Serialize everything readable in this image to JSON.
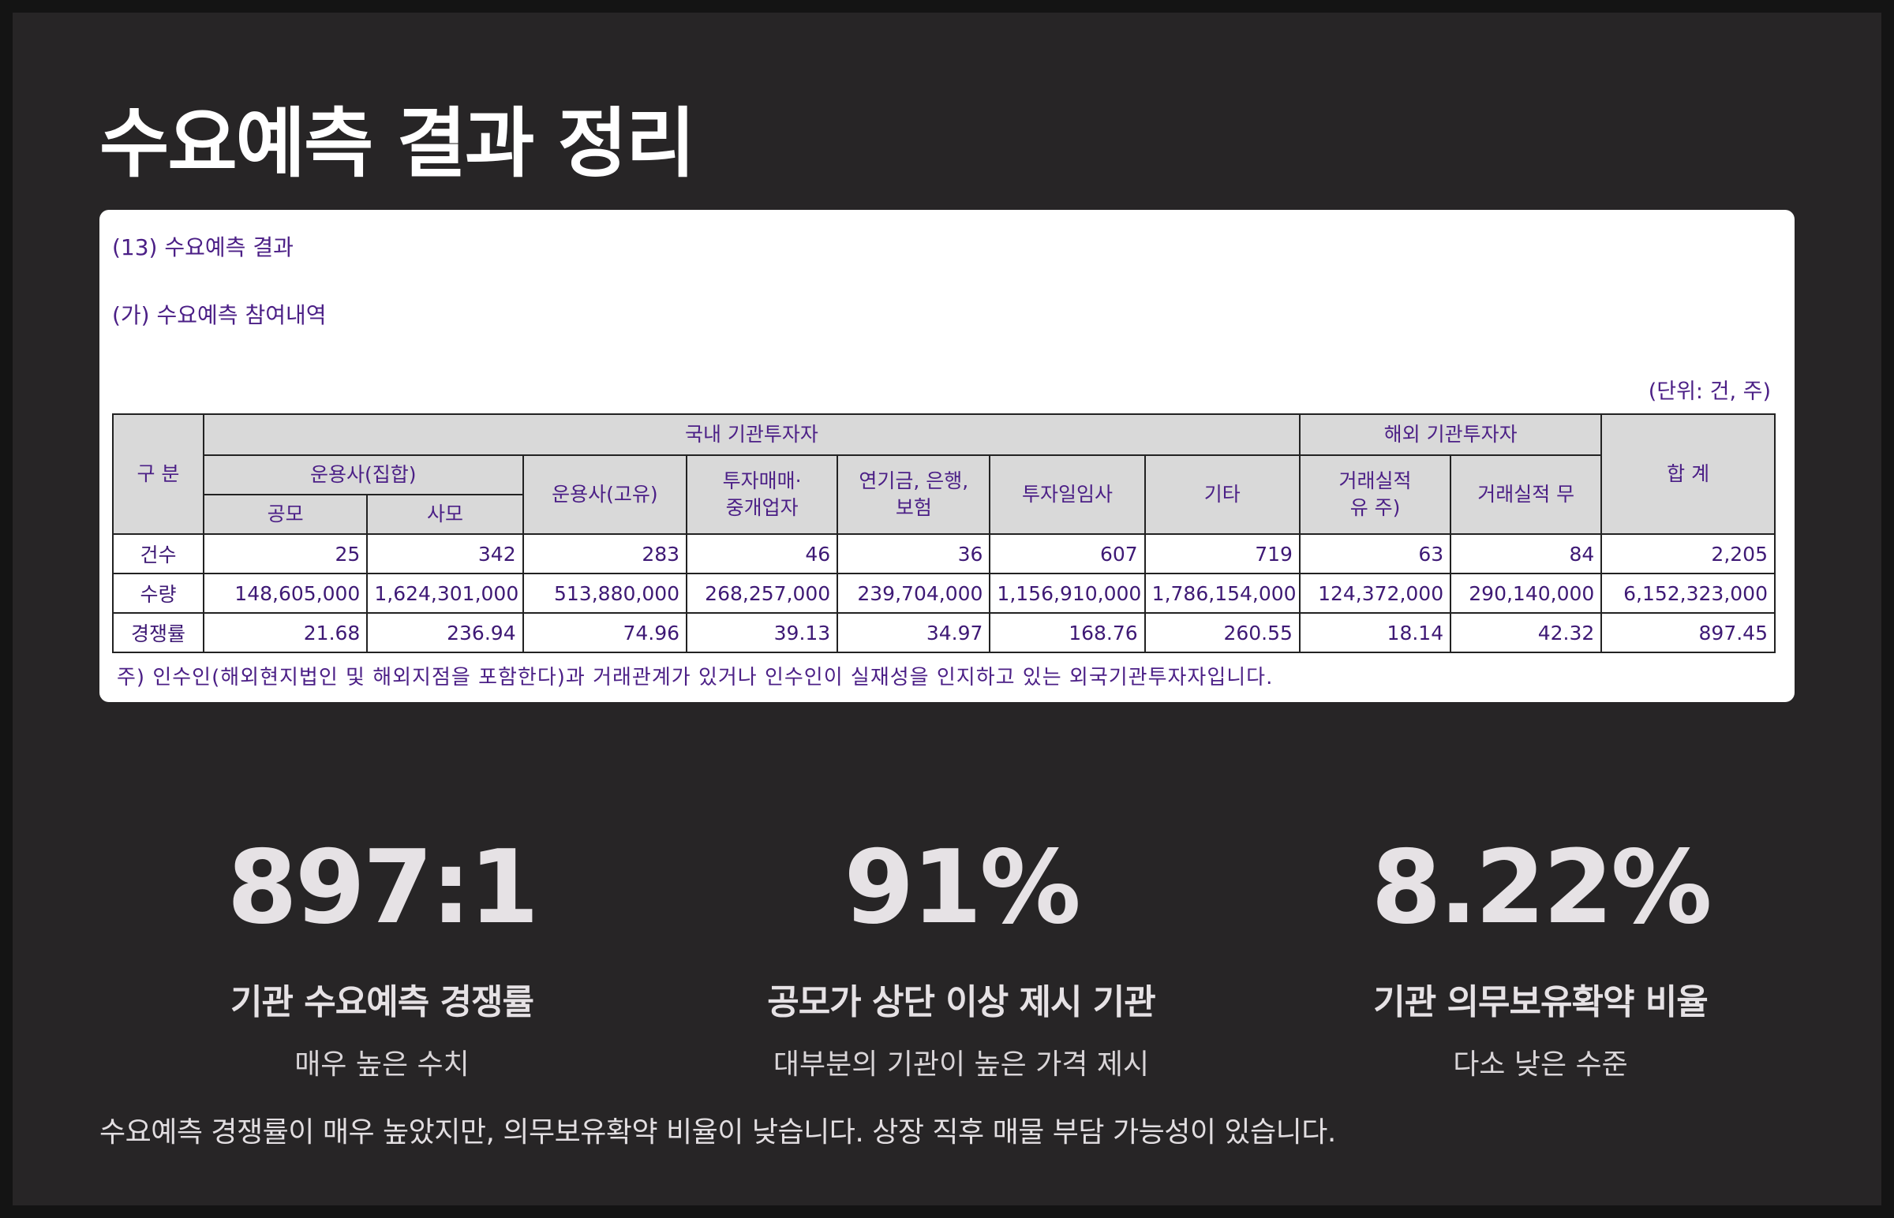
{
  "title": "수요예측 결과 정리",
  "doc": {
    "heading1": "(13) 수요예측 결과",
    "heading2": "(가) 수요예측 참여내역",
    "unit": "(단위: 건, 주)",
    "table": {
      "header_row_label": "구 분",
      "domestic_group": "국내 기관투자자",
      "foreign_group": "해외 기관투자자",
      "total_label": "합 계",
      "asset_mgmt_collective": "운용사(집합)",
      "public_offering": "공모",
      "private_offering": "사모",
      "asset_mgmt_proprietary": "운용사(고유)",
      "investment_trading_1": "투자매매·",
      "investment_trading_2": "중개업자",
      "pension_1": "연기금, 은행,",
      "pension_2": "보험",
      "investment_advisory": "투자일임사",
      "other": "기타",
      "with_record_1": "거래실적",
      "with_record_2": "유 주)",
      "without_record": "거래실적 무",
      "rows": [
        {
          "label": "건수",
          "values": [
            "25",
            "342",
            "283",
            "46",
            "36",
            "607",
            "719",
            "63",
            "84",
            "2,205"
          ]
        },
        {
          "label": "수량",
          "values": [
            "148,605,000",
            "1,624,301,000",
            "513,880,000",
            "268,257,000",
            "239,704,000",
            "1,156,910,000",
            "1,786,154,000",
            "124,372,000",
            "290,140,000",
            "6,152,323,000"
          ]
        },
        {
          "label": "경쟁률",
          "values": [
            "21.68",
            "236.94",
            "74.96",
            "39.13",
            "34.97",
            "168.76",
            "260.55",
            "18.14",
            "42.32",
            "897.45"
          ]
        }
      ]
    },
    "note": "주)  인수인(해외현지법인 및 해외지점을 포함한다)과 거래관계가 있거나 인수인이 실재성을 인지하고 있는 외국기관투자자입니다."
  },
  "stats": [
    {
      "value": "897:1",
      "label": "기관 수요예측 경쟁률",
      "sub": "매우 높은 수치"
    },
    {
      "value": "91%",
      "label": "공모가 상단 이상 제시 기관",
      "sub": "대부분의 기관이 높은 가격 제시"
    },
    {
      "value": "8.22%",
      "label": "기관 의무보유확약 비율",
      "sub": "다소 낮은 수준"
    }
  ],
  "summary": "수요예측 경쟁률이 매우 높았지만, 의무보유확약 비율이 낮습니다. 상장 직후 매물 부담 가능성이 있습니다."
}
